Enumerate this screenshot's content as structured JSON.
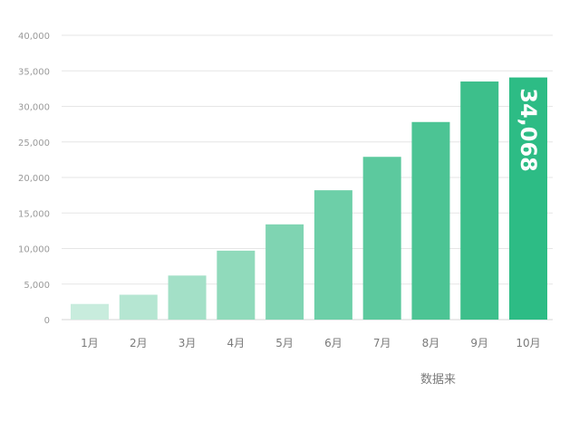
{
  "chart_data": {
    "type": "bar",
    "categories": [
      "1月",
      "2月",
      "3月",
      "4月",
      "5月",
      "6月",
      "7月",
      "8月",
      "9月",
      "10月"
    ],
    "values": [
      2200,
      3500,
      6200,
      9700,
      13400,
      18200,
      22900,
      27800,
      33500,
      34068
    ],
    "ylim": [
      0,
      40000
    ],
    "yticks": [
      "0",
      "5,000",
      "10,000",
      "15,000",
      "20,000",
      "25,000",
      "30,000",
      "35,000",
      "40,000"
    ],
    "ytick_values": [
      0,
      5000,
      10000,
      15000,
      20000,
      25000,
      30000,
      35000,
      40000
    ],
    "data_labels": [
      {
        "index": 9,
        "text": "34,068"
      }
    ],
    "grid": true,
    "colors": [
      "#c8ecdd",
      "#b5e6d2",
      "#a3e0c7",
      "#90dabb",
      "#7fd4b2",
      "#6dcfa8",
      "#5cc99e",
      "#4cc494",
      "#3dbf8b",
      "#2dbc85"
    ]
  },
  "footer": {
    "source": "数据来"
  }
}
